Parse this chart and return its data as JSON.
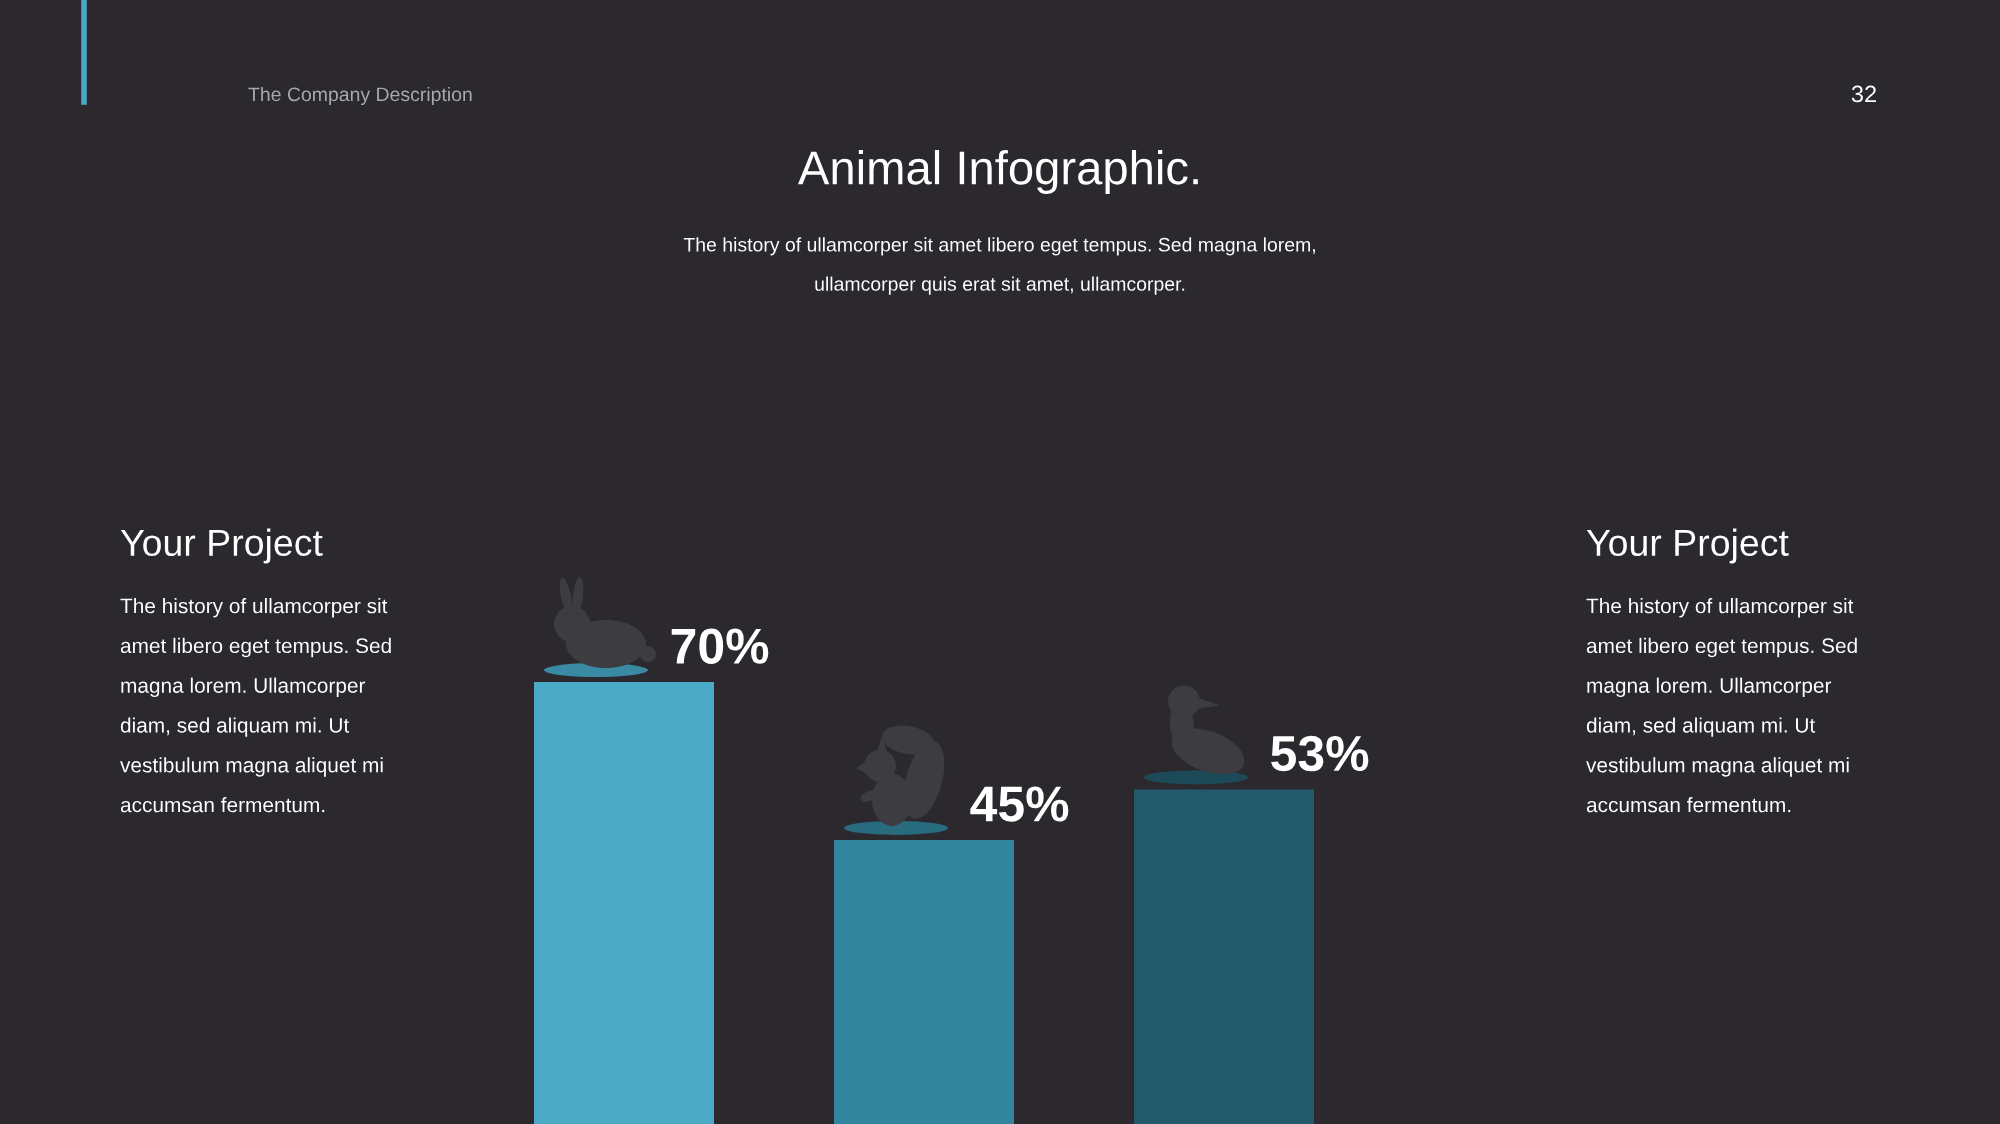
{
  "chart_data": {
    "type": "bar",
    "title": "Animal Infographic.",
    "subtitle": "The history of ullamcorper sit amet libero eget tempus. Sed magna lorem,\nullamcorper quis erat sit amet, ullamcorper.",
    "annotations": [
      "The Company Description",
      "32",
      "Your Project",
      "The history of ullamcorper sit\namet libero eget tempus. Sed\nmagna lorem. Ullamcorper\ndiam, sed aliquam mi. Ut\nvestibulum magna aliquet mi\naccumsan fermentum.",
      "Your Project",
      "The history of ullamcorper sit\namet libero eget tempus. Sed\nmagna lorem. Ullamcorper\ndiam, sed aliquam mi. Ut\nvestibulum magna aliquet mi\naccumsan fermentum."
    ],
    "categories": [
      null,
      null,
      null
    ],
    "values": [
      70,
      45,
      53
    ],
    "colors": [
      "#4aaac6",
      "#33869e",
      "#235a6b"
    ],
    "value_labels": [
      "70%",
      "45%",
      "53%"
    ],
    "tick_labels": false
  }
}
